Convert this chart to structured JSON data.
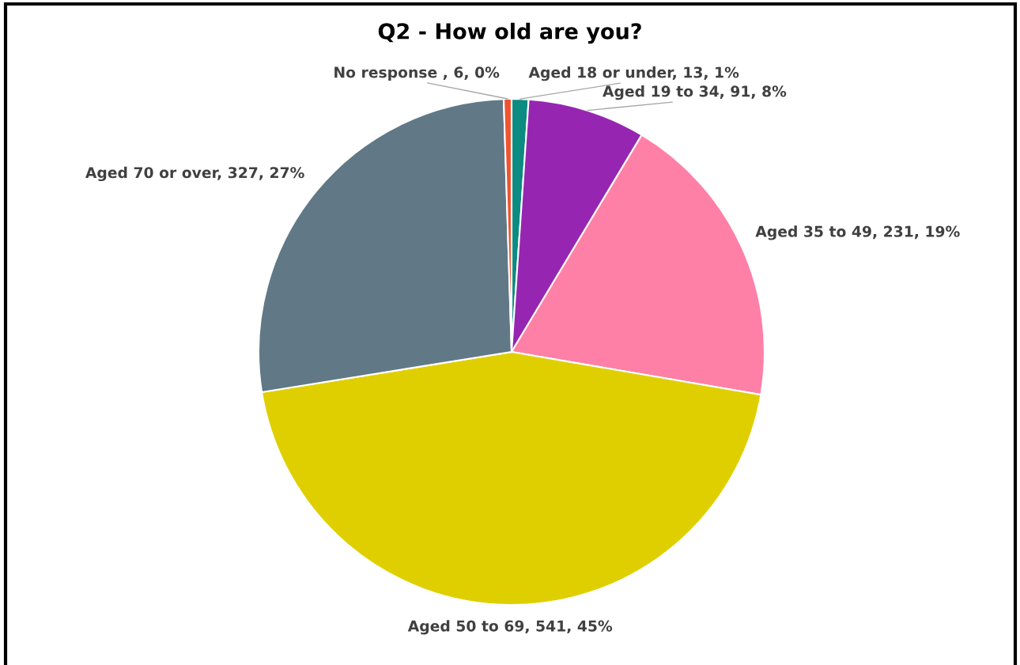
{
  "chart_data": {
    "type": "pie",
    "title": "Q2 - How old are you?",
    "categories": [
      "Aged 18 or under",
      "Aged 19 to 34",
      "Aged 35 to 49",
      "Aged 50 to 69",
      "Aged 70 or over",
      "No response "
    ],
    "values": [
      13,
      91,
      231,
      541,
      327,
      6
    ],
    "colors": [
      "#0b8b82",
      "#9626b1",
      "#ff80a7",
      "#e0cf00",
      "#617887",
      "#ef5330"
    ],
    "value_labels": [
      "13, 1%",
      "91, 8%",
      "231, 19%",
      "541, 45%",
      "327, 27%",
      "6, 0%"
    ]
  }
}
